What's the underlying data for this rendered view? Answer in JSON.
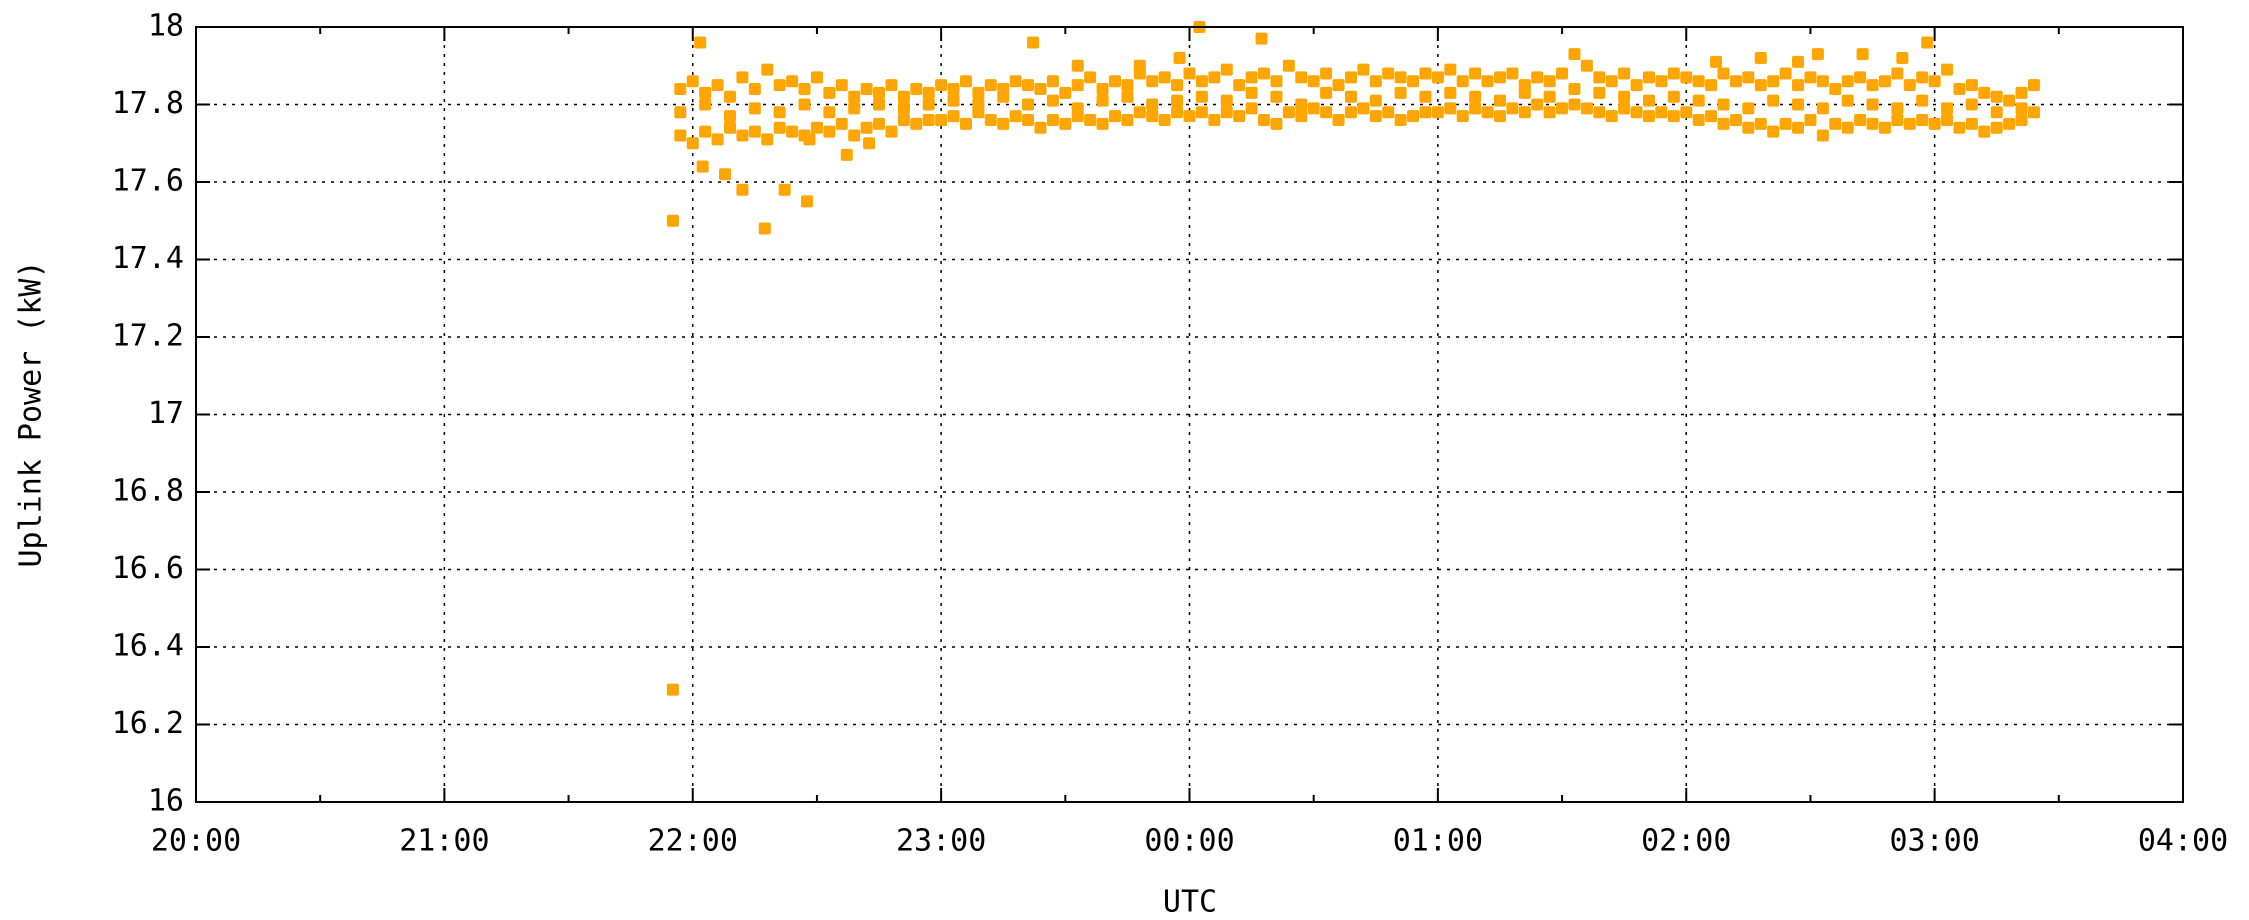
{
  "chart_data": {
    "type": "scatter",
    "y_label": "Uplink Power (kW)",
    "x_label": "UTC",
    "color": "#ffa500",
    "grid": true,
    "xlim": [
      20,
      28
    ],
    "ylim": [
      16,
      18
    ],
    "xticks": [
      {
        "value": 20,
        "label": "20:00"
      },
      {
        "value": 21,
        "label": "21:00"
      },
      {
        "value": 22,
        "label": "22:00"
      },
      {
        "value": 23,
        "label": "23:00"
      },
      {
        "value": 24,
        "label": "00:00"
      },
      {
        "value": 25,
        "label": "01:00"
      },
      {
        "value": 26,
        "label": "02:00"
      },
      {
        "value": 27,
        "label": "03:00"
      },
      {
        "value": 28,
        "label": "04:00"
      }
    ],
    "yticks": [
      16,
      16.2,
      16.4,
      16.6,
      16.8,
      17,
      17.2,
      17.4,
      17.6,
      17.8,
      18
    ],
    "x": [
      21.95,
      22,
      22.05,
      22.1,
      22.15,
      22.2,
      22.25,
      22.3,
      22.35,
      22.4,
      22.45,
      22.5,
      22.55,
      22.6,
      22.65,
      22.7,
      22.75,
      22.8,
      22.85,
      22.9,
      22.95,
      23,
      23.05,
      23.1,
      23.15,
      23.2,
      23.25,
      23.3,
      23.35,
      23.4,
      23.45,
      23.5,
      23.55,
      23.6,
      23.65,
      23.7,
      23.75,
      23.8,
      23.85,
      23.9,
      23.95,
      24,
      24.05,
      24.1,
      24.15,
      24.2,
      24.25,
      24.3,
      24.35,
      24.4,
      24.45,
      24.5,
      24.55,
      24.6,
      24.65,
      24.7,
      24.75,
      24.8,
      24.85,
      24.9,
      24.95,
      25,
      25.05,
      25.1,
      25.15,
      25.2,
      25.25,
      25.3,
      25.35,
      25.4,
      25.45,
      25.5,
      25.55,
      25.6,
      25.65,
      25.7,
      25.75,
      25.8,
      25.85,
      25.9,
      25.95,
      26,
      26.05,
      26.1,
      26.15,
      26.2,
      26.25,
      26.3,
      26.35,
      26.4,
      26.45,
      26.5,
      26.55,
      26.6,
      26.65,
      26.7,
      26.75,
      26.8,
      26.85,
      26.9,
      26.95,
      27,
      27.05,
      27.1,
      27.15,
      27.2,
      27.25,
      27.3,
      27.35,
      27.4,
      21.95,
      22,
      22.05,
      22.1,
      22.15,
      22.2,
      22.25,
      22.3,
      22.35,
      22.4,
      22.45,
      22.5,
      22.55,
      22.6,
      22.65,
      22.7,
      22.75,
      22.8,
      22.85,
      22.9,
      22.95,
      23,
      23.05,
      23.1,
      23.15,
      23.2,
      23.25,
      23.3,
      23.35,
      23.4,
      23.45,
      23.5,
      23.55,
      23.6,
      23.65,
      23.7,
      23.75,
      23.8,
      23.85,
      23.9,
      23.95,
      24,
      24.05,
      24.1,
      24.15,
      24.2,
      24.25,
      24.3,
      24.35,
      24.4,
      24.45,
      24.5,
      24.55,
      24.6,
      24.65,
      24.7,
      24.75,
      24.8,
      24.85,
      24.9,
      24.95,
      25,
      25.05,
      25.1,
      25.15,
      25.2,
      25.25,
      25.3,
      25.35,
      25.4,
      25.45,
      25.5,
      25.55,
      25.6,
      25.65,
      25.7,
      25.75,
      25.8,
      25.85,
      25.9,
      25.95,
      26,
      26.05,
      26.1,
      26.15,
      26.2,
      26.25,
      26.3,
      26.35,
      26.4,
      26.45,
      26.5,
      26.55,
      26.6,
      26.65,
      26.7,
      26.75,
      26.8,
      26.85,
      26.9,
      26.95,
      27,
      27.05,
      27.1,
      27.15,
      27.2,
      27.25,
      27.3,
      27.35,
      27.4,
      21.95,
      22.05,
      22.15,
      22.25,
      22.35,
      22.45,
      22.55,
      22.65,
      22.75,
      22.85,
      22.95,
      23.05,
      23.15,
      23.25,
      23.35,
      23.45,
      23.55,
      23.65,
      23.75,
      23.85,
      23.95,
      24.05,
      24.15,
      24.25,
      24.35,
      24.45,
      24.55,
      24.65,
      24.75,
      24.85,
      24.95,
      25.05,
      25.15,
      25.25,
      25.35,
      25.45,
      25.55,
      25.65,
      25.75,
      25.85,
      25.95,
      26.05,
      26.15,
      26.25,
      26.35,
      26.45,
      26.55,
      26.65,
      26.75,
      26.85,
      26.95,
      27.05,
      27.15,
      27.25,
      27.35,
      21.92,
      21.92,
      22.03,
      22.04,
      22.13,
      22.2,
      22.29,
      22.37,
      22.46,
      22.47,
      22.62,
      22.71,
      23.37,
      23.55,
      23.8,
      23.96,
      24.04,
      24.29,
      26.12,
      26.3,
      26.45,
      26.53,
      26.71,
      26.87,
      26.97
    ],
    "values": [
      17.72,
      17.7,
      17.73,
      17.71,
      17.74,
      17.72,
      17.73,
      17.71,
      17.74,
      17.73,
      17.72,
      17.74,
      17.73,
      17.75,
      17.72,
      17.74,
      17.75,
      17.73,
      17.76,
      17.75,
      17.76,
      17.76,
      17.77,
      17.75,
      17.78,
      17.76,
      17.75,
      17.77,
      17.76,
      17.74,
      17.76,
      17.75,
      17.77,
      17.76,
      17.75,
      17.77,
      17.76,
      17.78,
      17.77,
      17.76,
      17.78,
      17.77,
      17.78,
      17.76,
      17.78,
      17.77,
      17.79,
      17.76,
      17.75,
      17.78,
      17.77,
      17.79,
      17.78,
      17.76,
      17.78,
      17.79,
      17.77,
      17.78,
      17.76,
      17.77,
      17.78,
      17.78,
      17.79,
      17.77,
      17.79,
      17.78,
      17.77,
      17.79,
      17.78,
      17.8,
      17.78,
      17.79,
      17.8,
      17.79,
      17.78,
      17.77,
      17.79,
      17.78,
      17.77,
      17.78,
      17.77,
      17.78,
      17.76,
      17.77,
      17.75,
      17.76,
      17.74,
      17.75,
      17.73,
      17.75,
      17.74,
      17.76,
      17.72,
      17.75,
      17.74,
      17.76,
      17.75,
      17.74,
      17.76,
      17.75,
      17.76,
      17.75,
      17.76,
      17.74,
      17.75,
      17.73,
      17.74,
      17.75,
      17.76,
      17.78,
      17.84,
      17.86,
      17.83,
      17.85,
      17.82,
      17.87,
      17.84,
      17.89,
      17.85,
      17.86,
      17.84,
      17.87,
      17.83,
      17.85,
      17.82,
      17.84,
      17.83,
      17.85,
      17.82,
      17.84,
      17.83,
      17.85,
      17.84,
      17.86,
      17.83,
      17.85,
      17.84,
      17.86,
      17.85,
      17.84,
      17.86,
      17.83,
      17.85,
      17.87,
      17.84,
      17.86,
      17.85,
      17.88,
      17.86,
      17.87,
      17.85,
      17.88,
      17.86,
      17.87,
      17.89,
      17.85,
      17.87,
      17.88,
      17.86,
      17.9,
      17.87,
      17.86,
      17.88,
      17.85,
      17.87,
      17.89,
      17.86,
      17.88,
      17.87,
      17.86,
      17.88,
      17.87,
      17.89,
      17.86,
      17.88,
      17.86,
      17.87,
      17.88,
      17.85,
      17.87,
      17.86,
      17.88,
      17.93,
      17.9,
      17.87,
      17.86,
      17.88,
      17.85,
      17.87,
      17.86,
      17.88,
      17.87,
      17.86,
      17.85,
      17.88,
      17.86,
      17.87,
      17.85,
      17.86,
      17.88,
      17.85,
      17.87,
      17.86,
      17.84,
      17.86,
      17.87,
      17.85,
      17.86,
      17.88,
      17.85,
      17.87,
      17.86,
      17.89,
      17.84,
      17.85,
      17.83,
      17.82,
      17.81,
      17.83,
      17.85,
      17.78,
      17.8,
      17.77,
      17.79,
      17.78,
      17.8,
      17.78,
      17.79,
      17.8,
      17.79,
      17.8,
      17.81,
      17.8,
      17.82,
      17.8,
      17.81,
      17.79,
      17.81,
      17.82,
      17.8,
      17.81,
      17.82,
      17.81,
      17.83,
      17.82,
      17.8,
      17.83,
      17.82,
      17.81,
      17.83,
      17.82,
      17.83,
      17.82,
      17.81,
      17.83,
      17.82,
      17.84,
      17.83,
      17.82,
      17.81,
      17.82,
      17.81,
      17.8,
      17.79,
      17.81,
      17.8,
      17.79,
      17.81,
      17.8,
      17.79,
      17.81,
      17.79,
      17.8,
      17.78,
      17.79,
      17.5,
      16.29,
      17.96,
      17.64,
      17.62,
      17.58,
      17.48,
      17.58,
      17.55,
      17.71,
      17.67,
      17.7,
      17.96,
      17.9,
      17.9,
      17.92,
      18.0,
      17.97,
      17.91,
      17.92,
      17.91,
      17.93,
      17.93,
      17.92,
      17.96
    ]
  }
}
